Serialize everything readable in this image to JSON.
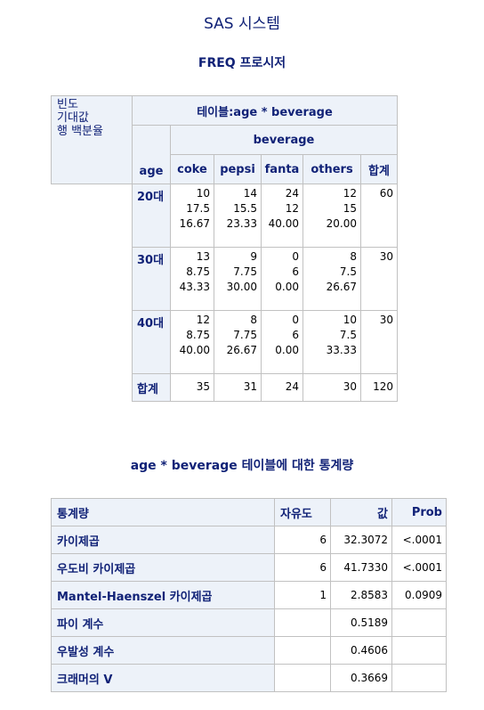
{
  "title": "SAS 시스템",
  "proc": "FREQ 프로시저",
  "crosstab": {
    "legend": [
      "빈도",
      "기대값",
      "행 백분율"
    ],
    "table_label": "테이블:age * beverage",
    "col_var": "beverage",
    "row_var": "age",
    "columns": [
      "coke",
      "pepsi",
      "fanta",
      "others",
      "합계"
    ],
    "rows": [
      {
        "label": "20대",
        "cells": [
          [
            "10",
            "17.5",
            "16.67"
          ],
          [
            "14",
            "15.5",
            "23.33"
          ],
          [
            "24",
            "12",
            "40.00"
          ],
          [
            "12",
            "15",
            "20.00"
          ],
          [
            "60"
          ]
        ]
      },
      {
        "label": "30대",
        "cells": [
          [
            "13",
            "8.75",
            "43.33"
          ],
          [
            "9",
            "7.75",
            "30.00"
          ],
          [
            "0",
            "6",
            "0.00"
          ],
          [
            "8",
            "7.5",
            "26.67"
          ],
          [
            "30"
          ]
        ]
      },
      {
        "label": "40대",
        "cells": [
          [
            "12",
            "8.75",
            "40.00"
          ],
          [
            "8",
            "7.75",
            "26.67"
          ],
          [
            "0",
            "6",
            "0.00"
          ],
          [
            "10",
            "7.5",
            "33.33"
          ],
          [
            "30"
          ]
        ]
      }
    ],
    "total_row": {
      "label": "합계",
      "cells": [
        "35",
        "31",
        "24",
        "30",
        "120"
      ]
    }
  },
  "stats_caption": "age * beverage 테이블에 대한 통계량",
  "stats": {
    "headers": [
      "통계량",
      "자유도",
      "값",
      "Prob"
    ],
    "rows": [
      [
        "카이제곱",
        "6",
        "32.3072",
        "<.0001"
      ],
      [
        "우도비 카이제곱",
        "6",
        "41.7330",
        "<.0001"
      ],
      [
        "Mantel-Haenszel 카이제곱",
        "1",
        "2.8583",
        "0.0909"
      ],
      [
        "파이 계수",
        "",
        "0.5189",
        ""
      ],
      [
        "우발성 계수",
        "",
        "0.4606",
        ""
      ],
      [
        "크래머의 V",
        "",
        "0.3669",
        ""
      ]
    ]
  }
}
